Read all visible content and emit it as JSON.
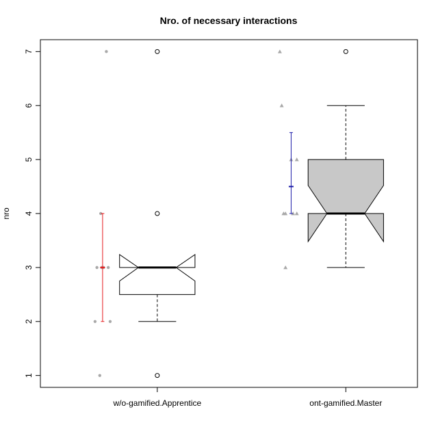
{
  "chart_data": {
    "type": "boxplot",
    "title": "Nro. of necessary interactions",
    "xlabel": "",
    "ylabel": "nro",
    "ylim": [
      0.78,
      7.22
    ],
    "yticks": [
      1,
      2,
      3,
      4,
      5,
      6,
      7
    ],
    "categories": [
      "w/o-gamified.Apprentice",
      "ont-gamified.Master"
    ],
    "boxes": [
      {
        "group": "w/o-gamified.Apprentice",
        "fill": "#ffffff",
        "notched": true,
        "lower_whisker": 2,
        "q1": 2.5,
        "median": 3,
        "q3": 3,
        "upper_whisker": 3,
        "notch_low": 2.75,
        "notch_high": 3.24,
        "outliers": [
          7,
          4,
          1
        ]
      },
      {
        "group": "ont-gamified.Master",
        "fill": "#c8c8c8",
        "notched": true,
        "lower_whisker": 3,
        "q1": 4,
        "median": 4,
        "q3": 5,
        "upper_whisker": 6,
        "notch_low": 3.48,
        "notch_high": 4.52,
        "outliers": [
          7
        ]
      }
    ],
    "raw_points": [
      {
        "group": "w/o-gamified.Apprentice",
        "marker": "circle",
        "color": "#a9a9a9",
        "values": [
          7,
          4,
          3,
          3,
          3,
          3,
          2,
          2,
          1
        ],
        "jitter": [
          0.02,
          -0.01,
          -0.03,
          0.03,
          -0.005,
          0.005,
          -0.04,
          0.04,
          -0.015
        ]
      },
      {
        "group": "ont-gamified.Master",
        "marker": "triangle",
        "color": "#a9a9a9",
        "values": [
          7,
          6,
          5,
          5,
          4,
          4,
          4,
          4,
          3
        ],
        "jitter": [
          -0.06,
          -0.05,
          0.0,
          0.03,
          -0.04,
          -0.03,
          0.01,
          0.03,
          -0.03
        ]
      }
    ],
    "mean_ci": [
      {
        "group": "w/o-gamified.Apprentice",
        "color": "#e41a1c",
        "mean": 3.0,
        "low": 2.0,
        "high": 4.0
      },
      {
        "group": "ont-gamified.Master",
        "color": "#1a1aa8",
        "mean": 4.5,
        "low": 4.0,
        "high": 5.5
      }
    ],
    "grid": false,
    "legend": "none"
  }
}
